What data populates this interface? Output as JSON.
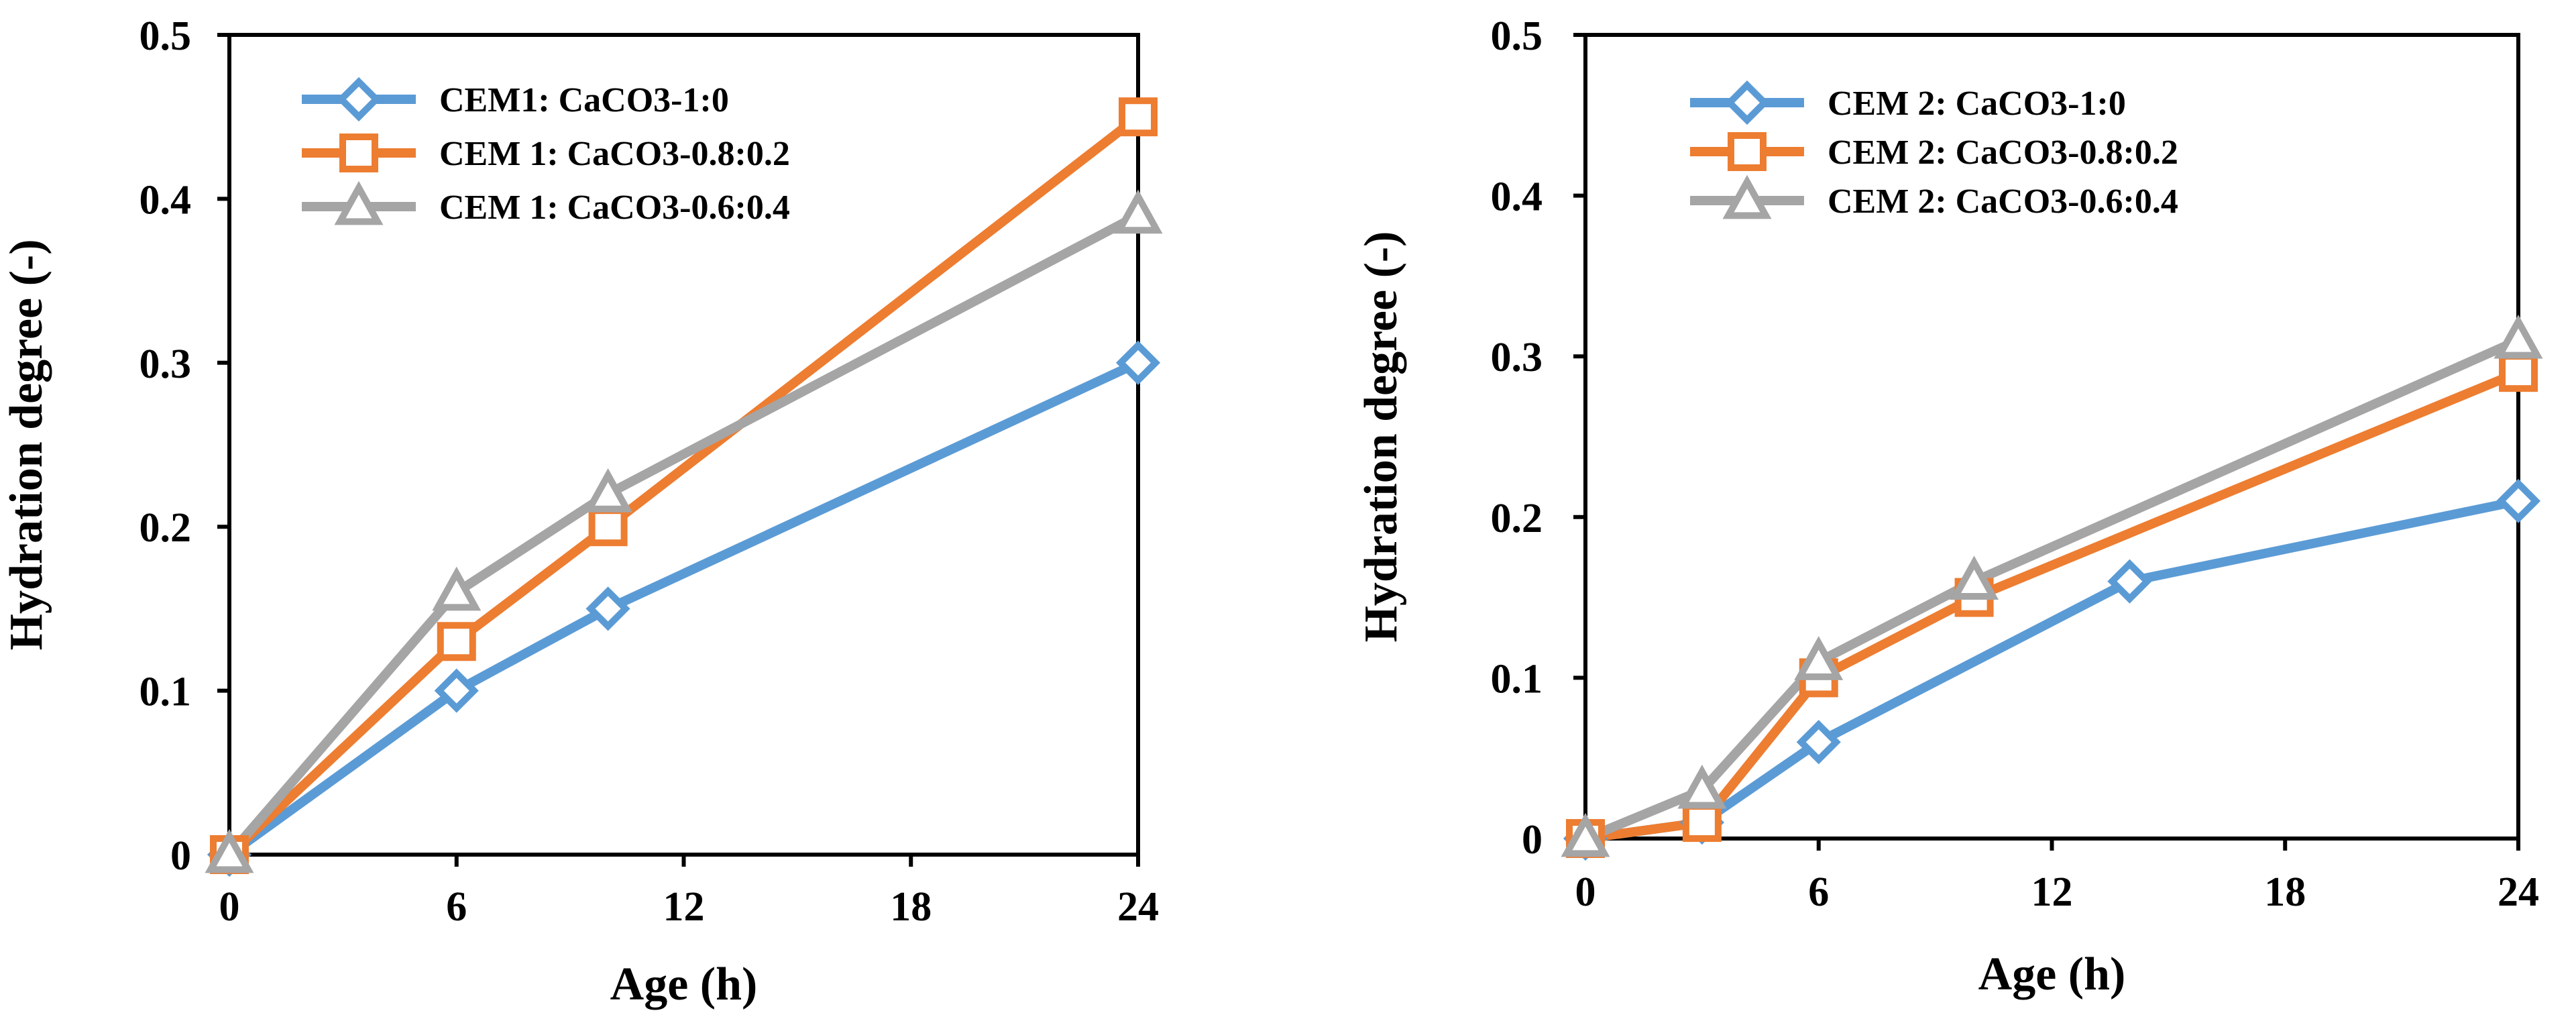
{
  "chart_data": [
    {
      "type": "line",
      "xlabel": "Age (h)",
      "ylabel": "Hydration degree (-)",
      "xlim": [
        0,
        24
      ],
      "ylim": [
        0,
        0.5
      ],
      "xticks": [
        0,
        6,
        12,
        18,
        24
      ],
      "xtick_labels": [
        "0",
        "6",
        "12",
        "18",
        "24"
      ],
      "yticks": [
        0,
        0.1,
        0.2,
        0.3,
        0.4,
        0.5
      ],
      "ytick_labels": [
        "0",
        "0.1",
        "0.2",
        "0.3",
        "0.4",
        "0.5"
      ],
      "grid": false,
      "legend_position": "top-left",
      "series": [
        {
          "name": "CEM1: CaCO3-1:0",
          "color": "#5B9BD5",
          "marker": "diamond",
          "x": [
            0,
            6,
            10,
            24
          ],
          "y": [
            0,
            0.1,
            0.15,
            0.3
          ]
        },
        {
          "name": "CEM 1: CaCO3-0.8:0.2",
          "color": "#ED7D31",
          "marker": "square",
          "x": [
            0,
            6,
            10,
            24
          ],
          "y": [
            0,
            0.13,
            0.2,
            0.45
          ]
        },
        {
          "name": "CEM 1: CaCO3-0.6:0.4",
          "color": "#A5A5A5",
          "marker": "triangle",
          "x": [
            0,
            6,
            10,
            24
          ],
          "y": [
            0,
            0.16,
            0.22,
            0.39
          ]
        }
      ]
    },
    {
      "type": "line",
      "xlabel": "Age (h)",
      "ylabel": "Hydration degree (-)",
      "xlim": [
        0,
        24
      ],
      "ylim": [
        0,
        0.5
      ],
      "xticks": [
        0,
        6,
        12,
        18,
        24
      ],
      "xtick_labels": [
        "0",
        "6",
        "12",
        "18",
        "24"
      ],
      "yticks": [
        0,
        0.1,
        0.2,
        0.3,
        0.4,
        0.5
      ],
      "ytick_labels": [
        "0",
        "0.1",
        "0.2",
        "0.3",
        "0.4",
        "0.5"
      ],
      "grid": false,
      "legend_position": "top-left",
      "series": [
        {
          "name": "CEM 2: CaCO3-1:0",
          "color": "#5B9BD5",
          "marker": "diamond",
          "x": [
            0,
            3,
            6,
            14,
            24
          ],
          "y": [
            0,
            0.01,
            0.06,
            0.16,
            0.21
          ]
        },
        {
          "name": "CEM 2: CaCO3-0.8:0.2",
          "color": "#ED7D31",
          "marker": "square",
          "x": [
            0,
            3,
            6,
            10,
            24
          ],
          "y": [
            0,
            0.01,
            0.1,
            0.15,
            0.29
          ]
        },
        {
          "name": "CEM 2: CaCO3-0.6:0.4",
          "color": "#A5A5A5",
          "marker": "triangle",
          "x": [
            0,
            3,
            6,
            10,
            24
          ],
          "y": [
            0,
            0.03,
            0.11,
            0.16,
            0.31
          ]
        }
      ]
    }
  ]
}
